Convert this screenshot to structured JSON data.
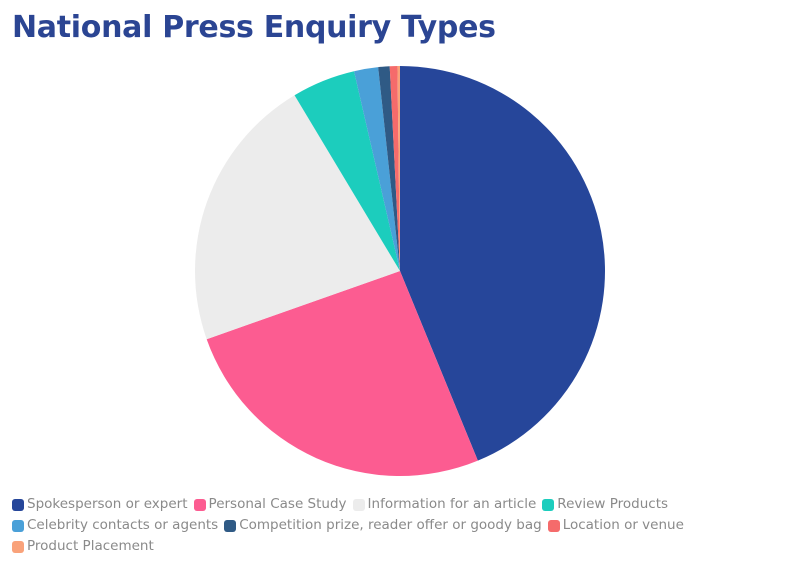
{
  "chart_data": {
    "type": "pie",
    "title": "National Press Enquiry Types",
    "categories": [
      "Spokesperson or expert",
      "Personal Case Study",
      "Information for an article",
      "Review Products",
      "Celebrity contacts or agents",
      "Competition prize, reader offer or goody bag",
      "Location or venue",
      "Product Placement"
    ],
    "values": [
      43.8,
      25.8,
      21.8,
      5.0,
      1.9,
      0.9,
      0.6,
      0.2
    ],
    "colors": [
      "#26469a",
      "#fc5c91",
      "#ececec",
      "#1ccdbd",
      "#4aa0d8",
      "#2f5a85",
      "#f56b6b",
      "#f9a27a"
    ],
    "legend": "bottom"
  }
}
